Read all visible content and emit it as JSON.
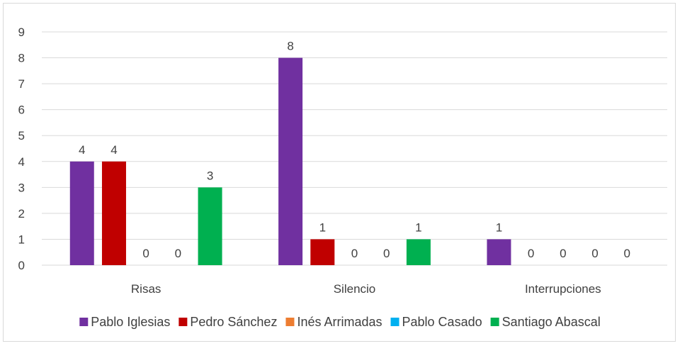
{
  "chart_data": {
    "type": "bar",
    "categories": [
      "Risas",
      "Silencio",
      "Interrupciones"
    ],
    "series": [
      {
        "name": "Pablo Iglesias",
        "color": "#7030a0",
        "values": [
          4,
          8,
          1
        ]
      },
      {
        "name": "Pedro Sánchez",
        "color": "#c00000",
        "values": [
          4,
          1,
          0
        ]
      },
      {
        "name": "Inés Arrimadas",
        "color": "#ed7d31",
        "values": [
          0,
          0,
          0
        ]
      },
      {
        "name": "Pablo Casado",
        "color": "#00b0f0",
        "values": [
          0,
          0,
          0
        ]
      },
      {
        "name": "Santiago Abascal",
        "color": "#00b050",
        "values": [
          3,
          1,
          0
        ]
      }
    ],
    "ylim": [
      0,
      9
    ],
    "yticks": [
      0,
      1,
      2,
      3,
      4,
      5,
      6,
      7,
      8,
      9
    ],
    "grid": true,
    "legend": "bottom",
    "data_labels": true
  }
}
